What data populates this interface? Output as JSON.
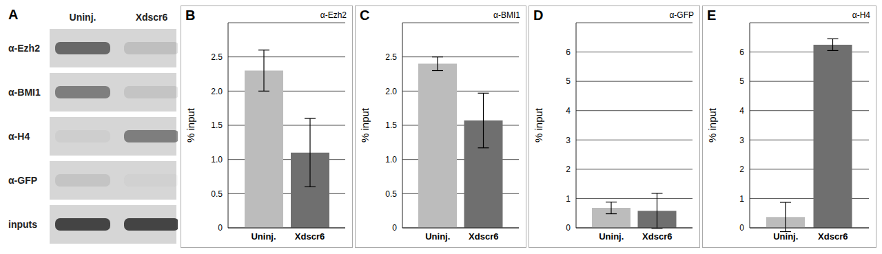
{
  "gel": {
    "panel": "A",
    "lanes": [
      "Uninj.",
      "Xdscr6"
    ],
    "rows": [
      {
        "label": "α-Ezh2",
        "band_intensity": [
          0.75,
          0.15
        ]
      },
      {
        "label": "α-BMI1",
        "band_intensity": [
          0.6,
          0.12
        ]
      },
      {
        "label": "α-H4",
        "band_intensity": [
          0.05,
          0.6
        ]
      },
      {
        "label": "α-GFP",
        "band_intensity": [
          0.12,
          0.03
        ]
      },
      {
        "label": "inputs",
        "band_intensity": [
          1,
          1
        ]
      }
    ]
  },
  "chart_data": [
    {
      "type": "bar",
      "panel": "B",
      "title": "α-Ezh2",
      "ylabel": "% input",
      "categories": [
        "Uninj.",
        "Xdscr6"
      ],
      "values": [
        2.3,
        1.1
      ],
      "errors": [
        0.3,
        0.5
      ],
      "colors": [
        "#bcbcbc",
        "#6f6f6f"
      ],
      "ylim": [
        0,
        3
      ],
      "yticks": [
        0,
        0.5,
        {
          "value": 1,
          "label": "1.0"
        },
        1.5,
        {
          "value": 2,
          "label": "2.0"
        },
        2.5
      ],
      "grid": true
    },
    {
      "type": "bar",
      "panel": "C",
      "title": "α-BMI1",
      "ylabel": "% input",
      "categories": [
        "Uninj.",
        "Xdscr6"
      ],
      "values": [
        2.4,
        1.57
      ],
      "errors": [
        0.1,
        0.4
      ],
      "colors": [
        "#bcbcbc",
        "#6f6f6f"
      ],
      "ylim": [
        0,
        3
      ],
      "yticks": [
        0,
        0.5,
        {
          "value": 1,
          "label": "1.0"
        },
        1.5,
        {
          "value": 2,
          "label": "2.0"
        },
        2.5
      ],
      "grid": true
    },
    {
      "type": "bar",
      "panel": "D",
      "title": "α-GFP",
      "ylabel": "% input",
      "categories": [
        "Uninj.",
        "Xdscr6"
      ],
      "values": [
        0.68,
        0.58
      ],
      "errors": [
        0.2,
        0.6
      ],
      "colors": [
        "#bcbcbc",
        "#6f6f6f"
      ],
      "ylim": [
        0,
        7
      ],
      "yticks": [
        0,
        1,
        2,
        3,
        4,
        5,
        6
      ],
      "grid": true
    },
    {
      "type": "bar",
      "panel": "E",
      "title": "α-H4",
      "ylabel": "% input",
      "categories": [
        "Uninj.",
        "Xdscr6"
      ],
      "values": [
        0.37,
        6.25
      ],
      "errors": [
        0.5,
        0.2
      ],
      "colors": [
        "#bcbcbc",
        "#6f6f6f"
      ],
      "ylim": [
        0,
        7
      ],
      "yticks": [
        0,
        1,
        2,
        3,
        4,
        5,
        6
      ],
      "grid": true
    }
  ]
}
